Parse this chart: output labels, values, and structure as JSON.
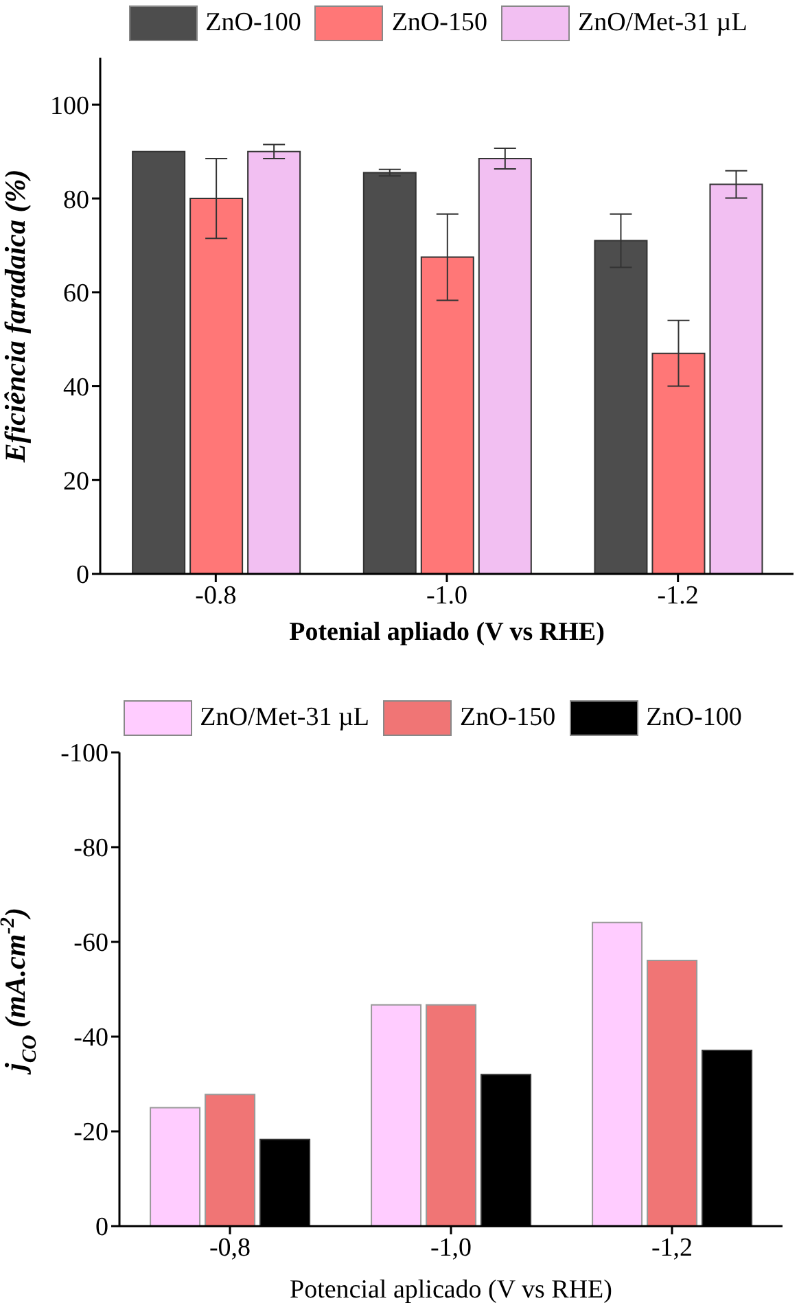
{
  "chart_data": [
    {
      "type": "bar",
      "categories": [
        "-0.8",
        "-1.0",
        "-1.2"
      ],
      "xlabel": "Potenial apliado (V vs RHE)",
      "ylabel": "Eficiência faradaica (%)",
      "ylim": [
        0,
        110
      ],
      "yticks": [
        0,
        20,
        40,
        60,
        80,
        100
      ],
      "grid": false,
      "legend": "top",
      "series": [
        {
          "name": "ZnO-100",
          "color": "#4d4d4d",
          "values": [
            90,
            85.5,
            71
          ],
          "errors": [
            null,
            0.7,
            5.7
          ]
        },
        {
          "name": "ZnO-150",
          "color": "#ff7777",
          "values": [
            80,
            67.5,
            47
          ],
          "errors": [
            8.5,
            9.2,
            7
          ]
        },
        {
          "name": "ZnO/Met-31 µL",
          "color": "#f2bff2",
          "values": [
            90,
            88.5,
            83
          ],
          "errors": [
            1.5,
            2.2,
            2.9
          ]
        }
      ]
    },
    {
      "type": "bar",
      "categories": [
        "-0,8",
        "-1,0",
        "-1,2"
      ],
      "xlabel": "Potencial aplicado (V vs RHE)",
      "ylabel": "j$_{CO}$ (mA.cm$^{-2}$)",
      "ylim": [
        0,
        -100
      ],
      "yticks": [
        0,
        -20,
        -40,
        -60,
        -80,
        -100
      ],
      "grid": false,
      "legend": "top",
      "series": [
        {
          "name": "ZnO/Met-31 µL",
          "color": "#ffccff",
          "values": [
            -25.0,
            -46.7,
            -64.1
          ]
        },
        {
          "name": "ZnO-150",
          "color": "#f07575",
          "values": [
            -27.8,
            -46.7,
            -56.1
          ]
        },
        {
          "name": "ZnO-100",
          "color": "#000000",
          "values": [
            -18.3,
            -32.0,
            -37.1
          ]
        }
      ]
    }
  ]
}
